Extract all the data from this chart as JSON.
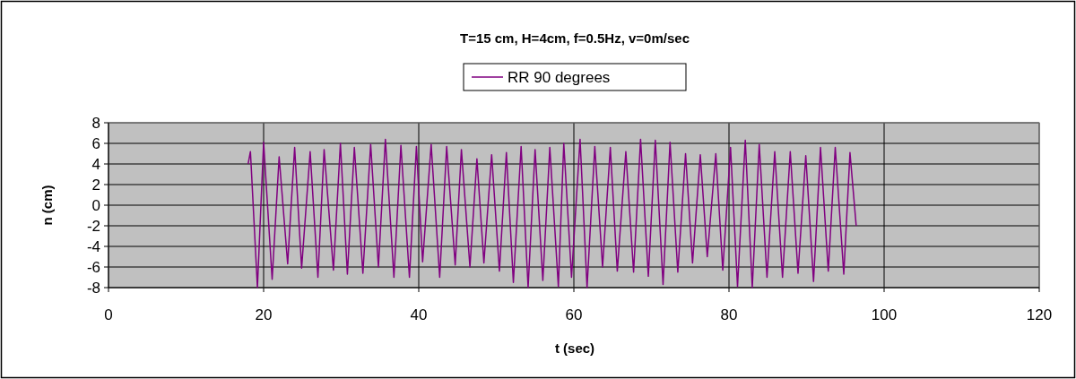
{
  "chart_data": {
    "type": "line",
    "title": "T=15 cm, H=4cm, f=0.5Hz, v=0m/sec",
    "xlabel": "t (sec)",
    "ylabel": "n (cm)",
    "xlim": [
      0,
      120
    ],
    "xticks": [
      0,
      20,
      40,
      60,
      80,
      100,
      120
    ],
    "ylim": [
      -8,
      8
    ],
    "yticks": [
      -8,
      -6,
      -4,
      -2,
      0,
      2,
      4,
      6,
      8
    ],
    "grid": true,
    "legend": "top",
    "marker": "none",
    "line_style": "solid",
    "series": [
      {
        "name": "RR 90 degrees",
        "color": "#800080",
        "x": [
          18.0,
          18.3,
          19.2,
          20.0,
          21.1,
          22.0,
          23.1,
          24.0,
          24.9,
          26.0,
          27.0,
          27.8,
          29.0,
          29.9,
          30.8,
          31.7,
          32.8,
          33.8,
          34.8,
          35.7,
          36.8,
          37.7,
          38.8,
          39.7,
          40.5,
          41.6,
          42.7,
          43.6,
          44.7,
          45.5,
          46.6,
          47.5,
          48.4,
          49.4,
          50.4,
          51.3,
          52.2,
          53.2,
          54.1,
          55.0,
          56.0,
          56.9,
          58.0,
          58.7,
          59.7,
          60.8,
          61.7,
          62.7,
          63.7,
          64.7,
          65.6,
          66.7,
          67.7,
          68.6,
          69.6,
          70.5,
          71.5,
          72.4,
          73.4,
          74.4,
          75.3,
          76.3,
          77.2,
          78.3,
          79.2,
          80.2,
          81.1,
          82.1,
          83.0,
          83.9,
          84.9,
          85.9,
          86.9,
          87.9,
          88.9,
          89.9,
          90.9,
          91.8,
          92.8,
          93.7,
          94.8,
          95.6,
          96.4
        ],
        "values": [
          4.0,
          5.2,
          -8.0,
          6.1,
          -7.2,
          4.7,
          -5.7,
          5.6,
          -6.1,
          5.2,
          -7.0,
          5.4,
          -6.3,
          6.0,
          -6.7,
          5.6,
          -6.6,
          5.9,
          -6.0,
          6.4,
          -7.0,
          5.8,
          -7.0,
          5.7,
          -5.5,
          5.9,
          -7.0,
          5.7,
          -5.8,
          5.4,
          -6.0,
          4.5,
          -5.6,
          4.9,
          -6.4,
          5.1,
          -7.5,
          5.7,
          -8.0,
          5.4,
          -7.3,
          5.6,
          -7.9,
          6.0,
          -7.0,
          6.4,
          -8.0,
          5.7,
          -6.0,
          5.6,
          -6.4,
          5.2,
          -6.5,
          6.4,
          -6.9,
          6.3,
          -7.7,
          6.1,
          -6.5,
          5.0,
          -5.6,
          4.9,
          -5.0,
          5.0,
          -6.3,
          5.6,
          -7.9,
          6.3,
          -8.0,
          5.9,
          -7.0,
          5.2,
          -7.0,
          5.2,
          -6.6,
          4.8,
          -7.4,
          5.6,
          -6.4,
          5.6,
          -6.7,
          5.1,
          -2.0
        ]
      }
    ]
  }
}
